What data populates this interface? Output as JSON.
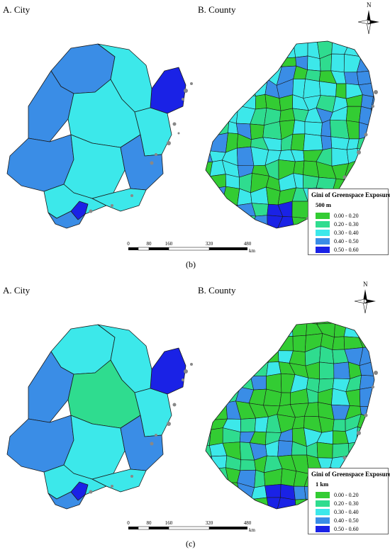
{
  "colors": {
    "class1": "#33cc33",
    "class2": "#2fdc8f",
    "class3": "#3ce8ea",
    "class4": "#3a8de6",
    "class5": "#1a22e6",
    "outline": "#1a1a1a",
    "islands": "#888888"
  },
  "legend_ranges": [
    "0.00 - 0.20",
    "0.20 - 0.30",
    "0.30 - 0.40",
    "0.40 - 0.50",
    "0.50 - 0.60"
  ],
  "panels": [
    {
      "city_title": "A. City",
      "county_title": "B. County",
      "north_label": "N",
      "legend_title": "Gini of Greenspace Exposure",
      "legend_subtitle": "500 m",
      "scale_ticks": [
        "0",
        "80",
        "160",
        "320",
        "480"
      ],
      "scale_unit": "km",
      "caption": "(b)"
    },
    {
      "city_title": "A. City",
      "county_title": "B. County",
      "north_label": "N",
      "legend_title": "Gini of Greenspace Exposure",
      "legend_subtitle": "1 km",
      "scale_ticks": [
        "0",
        "80",
        "160",
        "320",
        "480"
      ],
      "scale_unit": "km",
      "caption": "(c)"
    }
  ]
}
